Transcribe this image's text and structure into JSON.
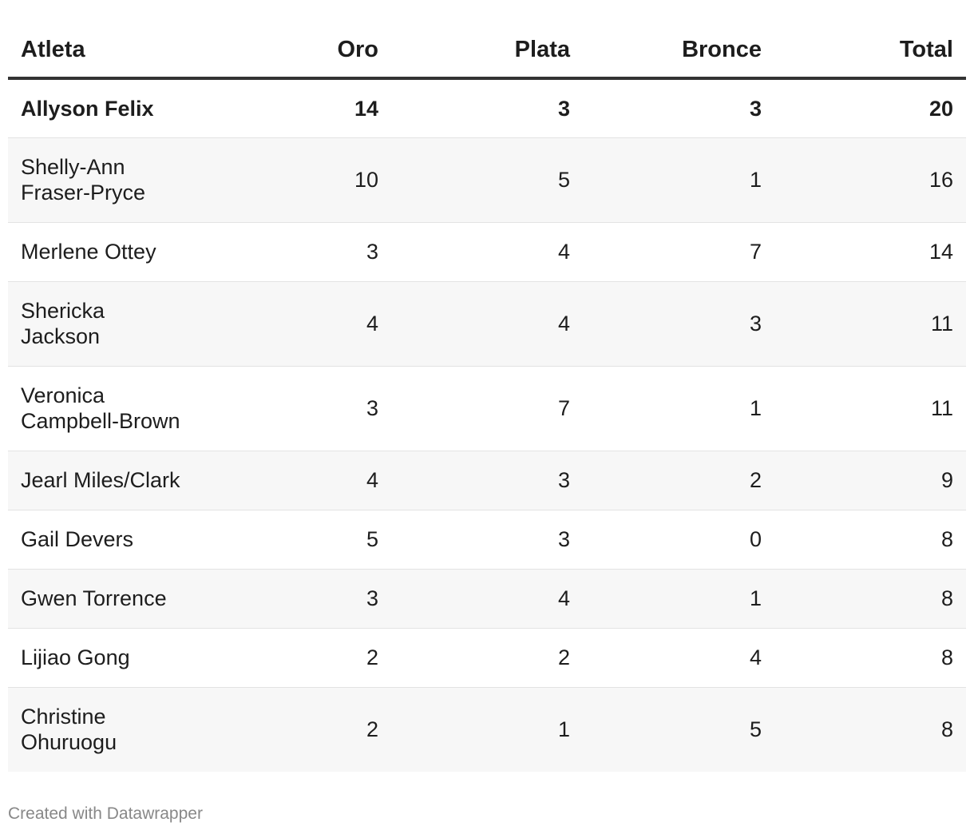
{
  "chart_data": {
    "type": "table",
    "columns": [
      "Atleta",
      "Oro",
      "Plata",
      "Bronce",
      "Total"
    ],
    "rows": [
      {
        "athlete": "Allyson Felix",
        "oro": 14,
        "plata": 3,
        "bronce": 3,
        "total": 20,
        "bold": true
      },
      {
        "athlete": "Shelly-Ann Fraser-Pryce",
        "oro": 10,
        "plata": 5,
        "bronce": 1,
        "total": 16
      },
      {
        "athlete": "Merlene Ottey",
        "oro": 3,
        "plata": 4,
        "bronce": 7,
        "total": 14
      },
      {
        "athlete": "Shericka Jackson",
        "oro": 4,
        "plata": 4,
        "bronce": 3,
        "total": 11
      },
      {
        "athlete": "Veronica Campbell-Brown",
        "oro": 3,
        "plata": 7,
        "bronce": 1,
        "total": 11
      },
      {
        "athlete": "Jearl Miles/Clark",
        "oro": 4,
        "plata": 3,
        "bronce": 2,
        "total": 9
      },
      {
        "athlete": "Gail Devers",
        "oro": 5,
        "plata": 3,
        "bronce": 0,
        "total": 8
      },
      {
        "athlete": "Gwen Torrence",
        "oro": 3,
        "plata": 4,
        "bronce": 1,
        "total": 8
      },
      {
        "athlete": "Lijiao Gong",
        "oro": 2,
        "plata": 2,
        "bronce": 4,
        "total": 8
      },
      {
        "athlete": "Christine Ohuruogu",
        "oro": 2,
        "plata": 1,
        "bronce": 5,
        "total": 8
      }
    ]
  },
  "footer": {
    "credit": "Created with Datawrapper"
  }
}
